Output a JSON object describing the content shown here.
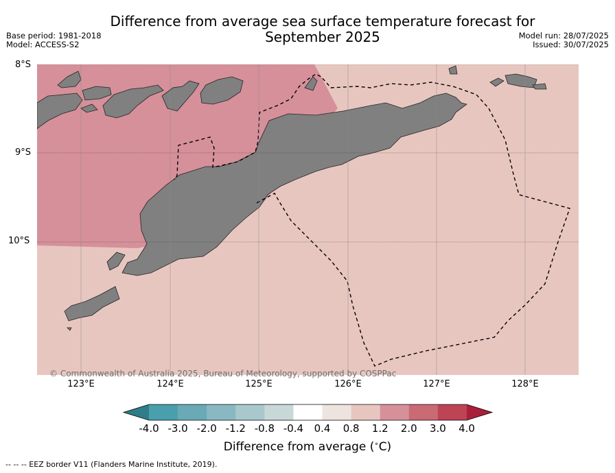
{
  "title_line1": "Difference from average sea surface temperature forecast for",
  "title_line2": "September 2025",
  "base_period": "Base period: 1981-2018",
  "model": "Model: ACCESS-S2",
  "model_run": "Model run: 28/07/2025",
  "issued": "Issued: 30/07/2025",
  "lat_labels": [
    "8°S",
    "9°S",
    "10°S"
  ],
  "lon_labels": [
    "123°E",
    "124°E",
    "125°E",
    "126°E",
    "127°E",
    "128°E"
  ],
  "copyright": "© Commonwealth of Australia 2025, Bureau of Meteorology, supported by COSPPac",
  "colorbar": {
    "ticks": [
      "-4.0",
      "-3.0",
      "-2.0",
      "-1.2",
      "-0.8",
      "-0.4",
      "0.4",
      "0.8",
      "1.2",
      "2.0",
      "3.0",
      "4.0"
    ],
    "colors": [
      "#4a9fac",
      "#6aaab6",
      "#8ab8c2",
      "#a8c8cc",
      "#c8d8d8",
      "#ffffff",
      "#ede4e0",
      "#e8c6c0",
      "#d6909a",
      "#ca6a74",
      "#bc4454"
    ],
    "under_color": "#2f7c8a",
    "over_color": "#a8203a",
    "label": "Difference from average ($^\\circ$C)"
  },
  "map": {
    "bg_anomaly_color": "#e8c6c0",
    "warm_anomaly_color": "#d6909a",
    "land_color": "#808080"
  },
  "footnote": "--  --  -- EEZ border V11 (Flanders Marine Institute, 2019)."
}
